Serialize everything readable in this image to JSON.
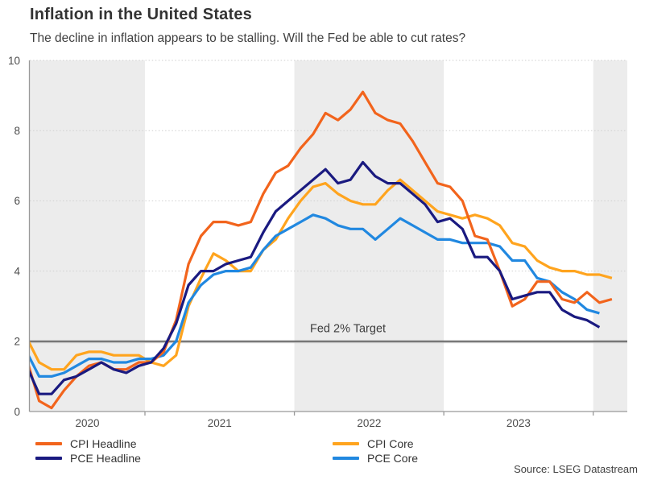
{
  "header": {
    "title": "Inflation in the United States",
    "subtitle": "The decline in inflation appears to be stalling. Will the Fed be able to cut rates?"
  },
  "source": {
    "label": "Source: LSEG Datastream"
  },
  "colors": {
    "band": "#ececec",
    "grid": "#cfcfcf",
    "axis": "#999999",
    "tick_text": "#4d4d4d",
    "target_line": "#6f6f6f",
    "target_text": "#3d3d3d"
  },
  "chart_data": {
    "type": "line",
    "title": "Inflation in the United States",
    "xlabel": "",
    "ylabel": "",
    "ylim": [
      0,
      10
    ],
    "yticks": [
      0,
      2,
      4,
      6,
      8,
      10
    ],
    "xticks": [
      "2020",
      "2021",
      "2022",
      "2023"
    ],
    "grid": "dotted horizontal gridlines",
    "plot_bands": "alternating year shading (2020, 2022, 2024 shaded)",
    "legend_position": "bottom",
    "target_line": {
      "label": "Fed 2% Target",
      "value": 2
    },
    "months": [
      "Mar 2020",
      "Apr 2020",
      "May 2020",
      "Jun 2020",
      "Jul 2020",
      "Aug 2020",
      "Sep 2020",
      "Oct 2020",
      "Nov 2020",
      "Dec 2020",
      "Jan 2021",
      "Feb 2021",
      "Mar 2021",
      "Apr 2021",
      "May 2021",
      "Jun 2021",
      "Jul 2021",
      "Aug 2021",
      "Sep 2021",
      "Oct 2021",
      "Nov 2021",
      "Dec 2021",
      "Jan 2022",
      "Feb 2022",
      "Mar 2022",
      "Apr 2022",
      "May 2022",
      "Jun 2022",
      "Jul 2022",
      "Aug 2022",
      "Sep 2022",
      "Oct 2022",
      "Nov 2022",
      "Dec 2022",
      "Jan 2023",
      "Feb 2023",
      "Mar 2023",
      "Apr 2023",
      "May 2023",
      "Jun 2023",
      "Jul 2023",
      "Aug 2023",
      "Sep 2023",
      "Oct 2023",
      "Nov 2023",
      "Dec 2023",
      "Jan 2024",
      "Feb 2024"
    ],
    "series": [
      {
        "name": "CPI Headline",
        "color": "#f2641c",
        "values": [
          1.5,
          0.3,
          0.1,
          0.6,
          1.0,
          1.3,
          1.4,
          1.2,
          1.2,
          1.4,
          1.4,
          1.7,
          2.6,
          4.2,
          5.0,
          5.4,
          5.4,
          5.3,
          5.4,
          6.2,
          6.8,
          7.0,
          7.5,
          7.9,
          8.5,
          8.3,
          8.6,
          9.1,
          8.5,
          8.3,
          8.2,
          7.7,
          7.1,
          6.5,
          6.4,
          6.0,
          5.0,
          4.9,
          4.0,
          3.0,
          3.2,
          3.7,
          3.7,
          3.2,
          3.1,
          3.4,
          3.1,
          3.2
        ]
      },
      {
        "name": "PCE Headline",
        "color": "#1a1a80",
        "values": [
          1.3,
          0.5,
          0.5,
          0.9,
          1.0,
          1.2,
          1.4,
          1.2,
          1.1,
          1.3,
          1.4,
          1.8,
          2.5,
          3.6,
          4.0,
          4.0,
          4.2,
          4.3,
          4.4,
          5.1,
          5.7,
          6.0,
          6.3,
          6.6,
          6.9,
          6.5,
          6.6,
          7.1,
          6.7,
          6.5,
          6.5,
          6.2,
          5.9,
          5.4,
          5.5,
          5.2,
          4.4,
          4.4,
          4.0,
          3.2,
          3.3,
          3.4,
          3.4,
          2.9,
          2.7,
          2.6,
          2.4
        ]
      },
      {
        "name": "CPI Core",
        "color": "#ffa41e",
        "values": [
          2.1,
          1.4,
          1.2,
          1.2,
          1.6,
          1.7,
          1.7,
          1.6,
          1.6,
          1.6,
          1.4,
          1.3,
          1.6,
          3.0,
          3.8,
          4.5,
          4.3,
          4.0,
          4.0,
          4.6,
          4.9,
          5.5,
          6.0,
          6.4,
          6.5,
          6.2,
          6.0,
          5.9,
          5.9,
          6.3,
          6.6,
          6.3,
          6.0,
          5.7,
          5.6,
          5.5,
          5.6,
          5.5,
          5.3,
          4.8,
          4.7,
          4.3,
          4.1,
          4.0,
          4.0,
          3.9,
          3.9,
          3.8
        ]
      },
      {
        "name": "PCE Core",
        "color": "#2188e0",
        "values": [
          1.7,
          1.0,
          1.0,
          1.1,
          1.3,
          1.5,
          1.5,
          1.4,
          1.4,
          1.5,
          1.5,
          1.6,
          2.0,
          3.1,
          3.6,
          3.9,
          4.0,
          4.0,
          4.1,
          4.6,
          5.0,
          5.2,
          5.4,
          5.6,
          5.5,
          5.3,
          5.2,
          5.2,
          4.9,
          5.2,
          5.5,
          5.3,
          5.1,
          4.9,
          4.9,
          4.8,
          4.8,
          4.8,
          4.7,
          4.3,
          4.3,
          3.8,
          3.7,
          3.4,
          3.2,
          2.9,
          2.8
        ]
      }
    ]
  }
}
